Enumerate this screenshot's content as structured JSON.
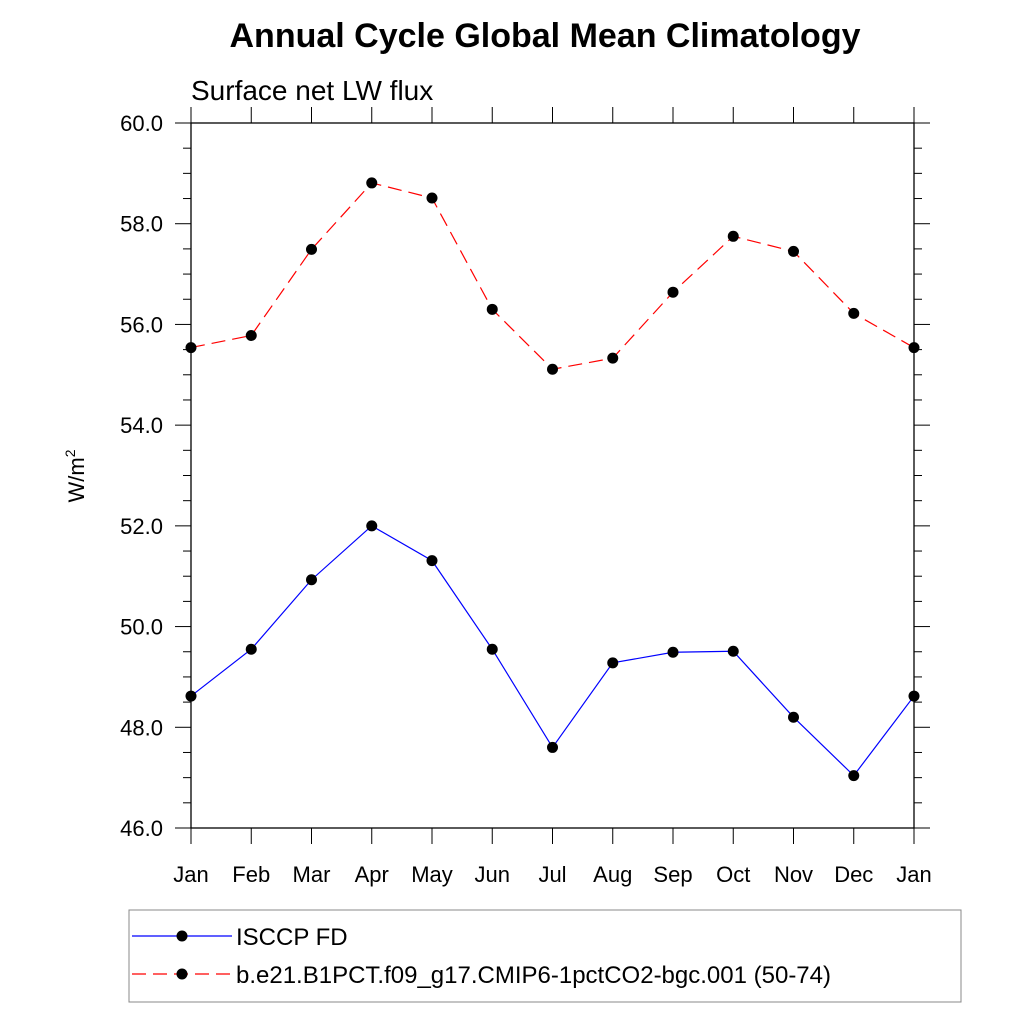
{
  "chart_data": {
    "type": "line",
    "title": "Annual Cycle Global Mean Climatology",
    "subtitle": "Surface net LW flux",
    "ylabel": "W/m",
    "ylabel_superscript": "2",
    "xlabel": "",
    "ylim": [
      46.0,
      60.0
    ],
    "yticks": [
      "46.0",
      "48.0",
      "50.0",
      "52.0",
      "54.0",
      "56.0",
      "58.0",
      "60.0"
    ],
    "categories": [
      "Jan",
      "Feb",
      "Mar",
      "Apr",
      "May",
      "Jun",
      "Jul",
      "Aug",
      "Sep",
      "Oct",
      "Nov",
      "Dec",
      "Jan"
    ],
    "grid": false,
    "legend_position": "bottom",
    "series": [
      {
        "name": "ISCCP FD",
        "color": "#0000ff",
        "dash": "solid",
        "marker": "filled-circle",
        "values": [
          48.62,
          49.55,
          50.93,
          52.0,
          51.31,
          49.55,
          47.6,
          49.28,
          49.49,
          49.51,
          48.2,
          47.04,
          48.62
        ]
      },
      {
        "name": "b.e21.B1PCT.f09_g17.CMIP6-1pctCO2-bgc.001 (50-74)",
        "color": "#ff0000",
        "dash": "dashed",
        "marker": "filled-circle",
        "values": [
          55.54,
          55.78,
          57.49,
          58.81,
          58.51,
          56.3,
          55.11,
          55.33,
          56.64,
          57.75,
          57.45,
          56.22,
          55.54
        ]
      }
    ]
  }
}
